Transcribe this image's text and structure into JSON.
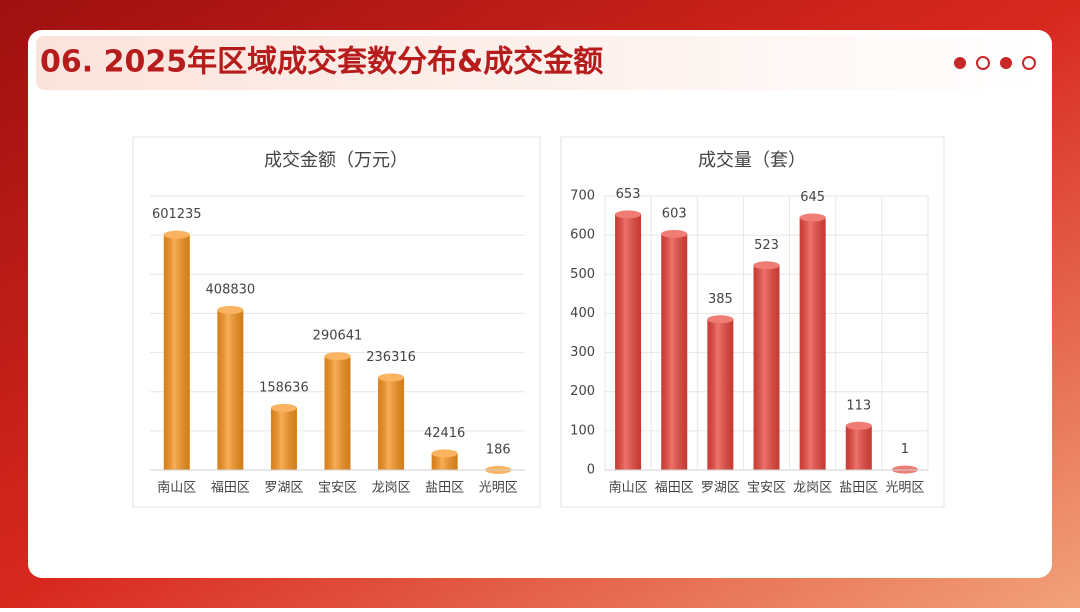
{
  "title": "06. 2025年区域成交套数分布&成交金额",
  "chart_data": [
    {
      "type": "bar",
      "title": "成交金额（万元）",
      "categories": [
        "南山区",
        "福田区",
        "罗湖区",
        "宝安区",
        "龙岗区",
        "盐田区",
        "光明区"
      ],
      "values": [
        601235,
        408830,
        158636,
        290641,
        236316,
        42416,
        186
      ],
      "color": "#f7931e",
      "ylim": [
        0,
        700000
      ],
      "yticks": [
        0,
        100000,
        200000,
        300000,
        400000,
        500000,
        600000,
        700000
      ],
      "ytick_labels": false,
      "grid": true,
      "vgrid": false
    },
    {
      "type": "bar",
      "title": "成交量（套）",
      "categories": [
        "南山区",
        "福田区",
        "罗湖区",
        "宝安区",
        "龙岗区",
        "盐田区",
        "光明区"
      ],
      "values": [
        653,
        603,
        385,
        523,
        645,
        113,
        1
      ],
      "color": "#e8453c",
      "ylim": [
        0,
        700
      ],
      "yticks": [
        0,
        100,
        200,
        300,
        400,
        500,
        600,
        700
      ],
      "ytick_labels": true,
      "grid": true,
      "vgrid": true
    }
  ]
}
